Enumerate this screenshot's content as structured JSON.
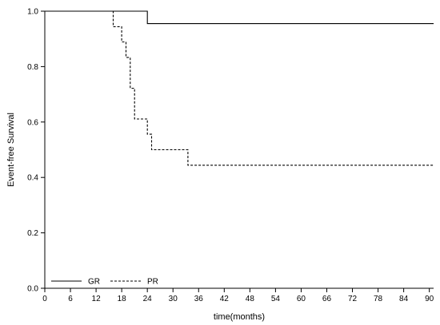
{
  "chart_data": {
    "type": "line",
    "title": "",
    "xlabel": "time(months)",
    "ylabel": "Event-free Survival",
    "xlim": [
      0,
      91
    ],
    "ylim": [
      0,
      1.0
    ],
    "x_ticks": [
      0,
      6,
      12,
      18,
      24,
      30,
      36,
      42,
      48,
      54,
      60,
      66,
      72,
      78,
      84,
      90
    ],
    "y_ticks": [
      0.0,
      0.2,
      0.4,
      0.6,
      0.8,
      1.0
    ],
    "y_tick_labels": [
      "0.0",
      "0.2",
      "0.4",
      "0.6",
      "0.8",
      "1.0"
    ],
    "grid": false,
    "legend": "bottom-left",
    "step": true,
    "series": [
      {
        "name": "GR",
        "line_style": "solid",
        "color": "#000000",
        "x": [
          0,
          24,
          24,
          91
        ],
        "y": [
          1.0,
          1.0,
          0.955,
          0.955
        ]
      },
      {
        "name": "PR",
        "line_style": "dashed",
        "color": "#000000",
        "x": [
          0,
          16,
          16,
          18,
          18,
          19,
          19,
          20,
          20,
          21,
          21,
          22,
          22,
          24,
          24,
          25,
          25,
          33.5,
          33.5,
          91
        ],
        "y": [
          1.0,
          1.0,
          0.944,
          0.944,
          0.889,
          0.889,
          0.833,
          0.833,
          0.722,
          0.722,
          0.611,
          0.611,
          0.611,
          0.611,
          0.556,
          0.556,
          0.5,
          0.5,
          0.444,
          0.444
        ]
      }
    ]
  }
}
